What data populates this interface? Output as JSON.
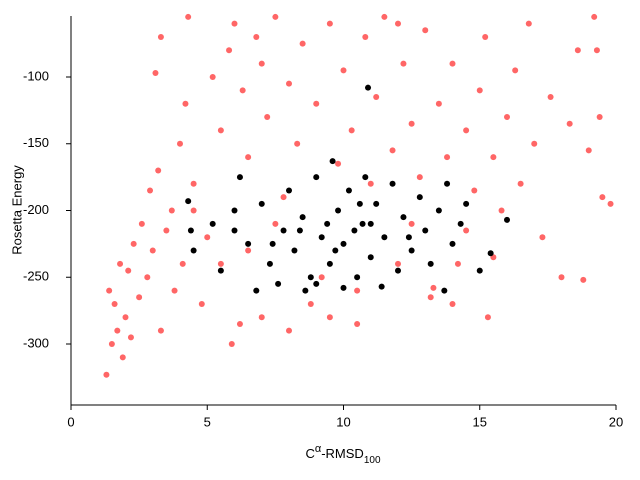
{
  "chart_data": {
    "type": "scatter",
    "xlabel": [
      "C",
      "α",
      "-RMSD",
      "100"
    ],
    "ylabel": "Rosetta Energy",
    "xlim": [
      0,
      20
    ],
    "xticks": [
      0,
      5,
      10,
      15,
      20
    ],
    "ylim": [
      -345.7,
      -54.3
    ],
    "yticks": [
      -100,
      -150,
      -200,
      -250,
      -300
    ],
    "series": [
      {
        "color": "#ff6666",
        "x": [
          1.3,
          1.5,
          1.7,
          1.9,
          1.6,
          2.0,
          1.4,
          2.2,
          2.5,
          2.8,
          2.1,
          3.0,
          3.3,
          3.5,
          2.6,
          2.9,
          3.2,
          3.7,
          4.0,
          4.2,
          4.5,
          4.1,
          4.8,
          5.0,
          5.2,
          5.5,
          5.8,
          6.0,
          6.3,
          6.5,
          6.8,
          7.0,
          7.2,
          7.5,
          7.8,
          8.0,
          8.3,
          8.5,
          8.8,
          9.0,
          9.2,
          9.5,
          9.8,
          10.0,
          10.3,
          10.5,
          10.8,
          11.0,
          11.2,
          11.5,
          11.8,
          12.0,
          12.2,
          12.5,
          12.8,
          13.0,
          13.2,
          13.5,
          13.8,
          14.0,
          14.2,
          14.5,
          14.8,
          15.0,
          15.2,
          15.5,
          15.8,
          16.0,
          16.3,
          16.5,
          16.8,
          17.0,
          17.3,
          17.6,
          18.0,
          18.3,
          18.6,
          18.8,
          19.0,
          19.2,
          19.3,
          19.5,
          19.8,
          19.4,
          6.2,
          7.0,
          5.9,
          4.3,
          3.3,
          3.1,
          12.0,
          13.3,
          14.0,
          15.3,
          8.0,
          9.5,
          10.5,
          6.5,
          7.5,
          12.5,
          14.5,
          15.5,
          5.5,
          4.5,
          3.8,
          2.3,
          1.8
        ],
        "values": [
          -323,
          -300,
          -290,
          -310,
          -270,
          -280,
          -260,
          -295,
          -265,
          -250,
          -245,
          -230,
          -290,
          -215,
          -210,
          -185,
          -170,
          -200,
          -150,
          -120,
          -180,
          -240,
          -270,
          -220,
          -100,
          -140,
          -80,
          -60,
          -110,
          -160,
          -70,
          -90,
          -130,
          -55,
          -190,
          -105,
          -150,
          -75,
          -270,
          -120,
          -250,
          -60,
          -165,
          -95,
          -140,
          -260,
          -70,
          -180,
          -115,
          -55,
          -155,
          -240,
          -90,
          -135,
          -175,
          -65,
          -265,
          -120,
          -160,
          -90,
          -240,
          -140,
          -185,
          -110,
          -70,
          -160,
          -200,
          -130,
          -95,
          -180,
          -60,
          -150,
          -220,
          -115,
          -250,
          -135,
          -80,
          -252,
          -155,
          -55,
          -80,
          -190,
          -195,
          -130,
          -285,
          -280,
          -300,
          -55,
          -70,
          -97,
          -60,
          -258,
          -270,
          -280,
          -290,
          -280,
          -285,
          -230,
          -210,
          -210,
          -215,
          -235,
          -240,
          -200,
          -260,
          -225,
          -240
        ]
      },
      {
        "color": "#000000",
        "x": [
          5.2,
          5.5,
          6.0,
          6.5,
          6.2,
          7.0,
          7.3,
          7.6,
          7.8,
          8.0,
          8.2,
          8.5,
          8.8,
          9.0,
          9.2,
          9.5,
          9.6,
          9.8,
          10.0,
          10.2,
          10.5,
          10.7,
          10.9,
          11.0,
          11.2,
          11.5,
          11.8,
          12.0,
          12.2,
          12.5,
          12.8,
          13.0,
          13.2,
          13.5,
          13.7,
          14.0,
          14.3,
          14.5,
          15.0,
          15.4,
          16.0,
          4.5,
          4.4,
          4.3,
          6.8,
          8.6,
          10.0,
          11.4,
          9.4,
          10.4,
          11.0,
          9.7,
          10.6,
          8.4,
          12.4,
          7.4,
          6.0,
          13.8,
          10.8,
          9.0
        ],
        "values": [
          -210,
          -245,
          -200,
          -225,
          -175,
          -195,
          -240,
          -255,
          -215,
          -185,
          -230,
          -205,
          -250,
          -175,
          -220,
          -240,
          -163,
          -200,
          -225,
          -185,
          -250,
          -210,
          -108,
          -235,
          -195,
          -220,
          -180,
          -245,
          -205,
          -230,
          -190,
          -215,
          -240,
          -200,
          -260,
          -225,
          -210,
          -195,
          -245,
          -232,
          -207,
          -230,
          -215,
          -193,
          -260,
          -260,
          -258,
          -257,
          -210,
          -215,
          -210,
          -230,
          -195,
          -215,
          -220,
          -225,
          -215,
          -180,
          -175,
          -255
        ]
      }
    ]
  }
}
